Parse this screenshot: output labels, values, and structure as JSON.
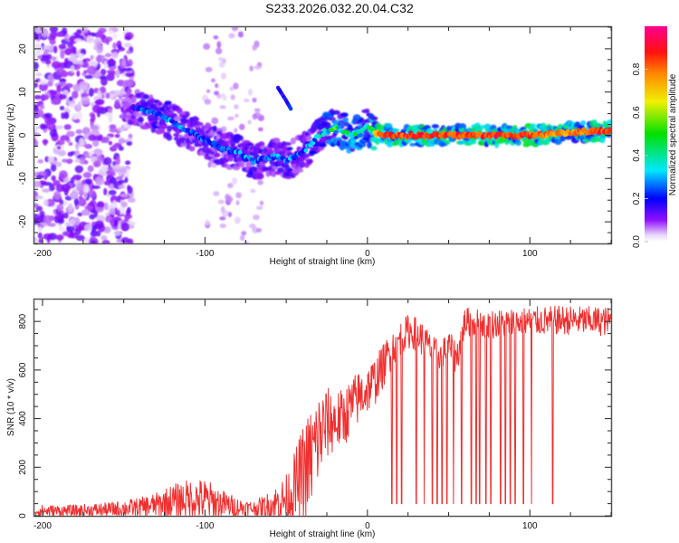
{
  "title": "S233.2026.032.20.04.C32",
  "chart_data": [
    {
      "id": "spectrogram",
      "type": "heatmap",
      "xlabel": "Height of straight line (km)",
      "ylabel": "Frequency (Hz)",
      "xlim": [
        -205,
        150
      ],
      "ylim": [
        -25,
        25
      ],
      "xticks": [
        -200,
        -100,
        0,
        100
      ],
      "xtick_labels": [
        "-200",
        "-100",
        "0",
        "100"
      ],
      "yticks": [
        -20,
        -10,
        0,
        10,
        20
      ],
      "ytick_labels": [
        "-20",
        "-10",
        "0",
        "10",
        "20"
      ],
      "colorbar": {
        "label": "Normalized spectral amplitude",
        "range": [
          0.0,
          1.0
        ],
        "ticks": [
          0.0,
          0.2,
          0.4,
          0.6,
          0.8
        ],
        "tick_labels": [
          "0.0",
          "0.2",
          "0.4",
          "0.6",
          "0.8"
        ],
        "colormap": [
          "#ffffff",
          "#e0c8f8",
          "#8000ff",
          "#0000ff",
          "#00e0ff",
          "#00e000",
          "#f0f000",
          "#ff8000",
          "#ff0000",
          "#ff0080"
        ]
      },
      "ridge": {
        "description": "Dominant frequency track vs height",
        "x": [
          -150,
          -140,
          -130,
          -120,
          -110,
          -100,
          -90,
          -80,
          -70,
          -60,
          -55,
          -50,
          -45,
          -40,
          -35,
          -30,
          -25,
          -20,
          -15,
          -10,
          -5,
          0,
          5,
          10,
          20,
          40,
          60,
          80,
          100,
          120,
          140,
          150
        ],
        "y": [
          7,
          6,
          5,
          3,
          1,
          -1,
          -3,
          -4,
          -6,
          -5,
          -5,
          -6,
          -5,
          -4,
          -2,
          0,
          1,
          2,
          1,
          0,
          1,
          2,
          0.5,
          0,
          0,
          0,
          0,
          0,
          0,
          0.5,
          1,
          1
        ],
        "amp": [
          0.2,
          0.3,
          0.35,
          0.35,
          0.3,
          0.3,
          0.3,
          0.35,
          0.35,
          0.3,
          0.35,
          0.35,
          0.3,
          0.3,
          0.35,
          0.4,
          0.5,
          0.6,
          0.5,
          0.6,
          0.55,
          0.5,
          0.8,
          0.9,
          0.9,
          0.95,
          0.9,
          0.95,
          0.9,
          0.8,
          0.9,
          0.9
        ]
      },
      "secondary_track": {
        "x": [
          -55,
          -50,
          -47
        ],
        "y": [
          11,
          8,
          6
        ],
        "amp": [
          0.2,
          0.25,
          0.25
        ]
      },
      "noise_region": {
        "x_range": [
          -205,
          -145
        ],
        "y_range": [
          -25,
          25
        ],
        "amp": 0.12
      }
    },
    {
      "id": "snr",
      "type": "line",
      "xlabel": "Height of straight line (km)",
      "ylabel": "SNR (10 * v/v)",
      "xlim": [
        -205,
        150
      ],
      "ylim": [
        0,
        890
      ],
      "xticks": [
        -200,
        -100,
        0,
        100
      ],
      "xtick_labels": [
        "-200",
        "-100",
        "0",
        "100"
      ],
      "yticks": [
        0,
        200,
        400,
        600,
        800
      ],
      "ytick_labels": [
        "0",
        "200",
        "400",
        "600",
        "800"
      ],
      "color": "#f03030",
      "envelope": {
        "x": [
          -205,
          -180,
          -160,
          -150,
          -140,
          -130,
          -120,
          -110,
          -100,
          -90,
          -80,
          -70,
          -60,
          -50,
          -45,
          -40,
          -35,
          -30,
          -25,
          -20,
          -15,
          -10,
          -5,
          0,
          5,
          10,
          15,
          20,
          25,
          30,
          35,
          40,
          45,
          50,
          55,
          60,
          70,
          80,
          100,
          120,
          150
        ],
        "base": [
          20,
          20,
          25,
          30,
          35,
          45,
          60,
          70,
          65,
          50,
          35,
          30,
          40,
          70,
          110,
          170,
          230,
          320,
          380,
          390,
          400,
          450,
          490,
          520,
          560,
          620,
          690,
          730,
          760,
          750,
          720,
          680,
          660,
          700,
          650,
          800,
          790,
          790,
          800,
          805,
          800
        ],
        "noise": [
          25,
          25,
          30,
          35,
          40,
          50,
          70,
          80,
          90,
          60,
          40,
          30,
          60,
          100,
          150,
          200,
          220,
          200,
          150,
          130,
          120,
          120,
          110,
          100,
          100,
          90,
          80,
          70,
          70,
          70,
          70,
          60,
          60,
          60,
          70,
          60,
          60,
          60,
          60,
          60,
          60
        ]
      },
      "dropouts_x": [
        15,
        18,
        21,
        30,
        35,
        40,
        43,
        46,
        49,
        53,
        58,
        64,
        67,
        69,
        73,
        76,
        82,
        85,
        88,
        91,
        96,
        101,
        114
      ],
      "dropout_value": 50
    }
  ]
}
